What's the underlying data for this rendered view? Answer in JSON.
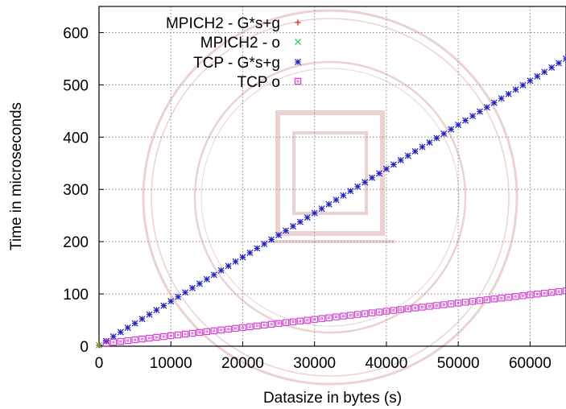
{
  "chart_data": {
    "type": "scatter",
    "title": "",
    "xlabel": "Datasize in bytes (s)",
    "ylabel": "Time in microseconds",
    "xlim": [
      0,
      65000
    ],
    "ylim": [
      0,
      650
    ],
    "x_ticks": [
      0,
      10000,
      20000,
      30000,
      40000,
      50000,
      60000
    ],
    "x_tick_labels": [
      "0",
      "10000",
      "20000",
      "30000",
      "40000",
      "50000",
      "60000"
    ],
    "y_ticks": [
      0,
      100,
      200,
      300,
      400,
      500,
      600
    ],
    "y_tick_labels": [
      "0",
      "100",
      "200",
      "300",
      "400",
      "500",
      "600"
    ],
    "grid": true,
    "legend_position": "top-left",
    "series": [
      {
        "name": "MPICH2 - G*s+g",
        "marker": "plus",
        "color": "#e41a1c",
        "x": [
          0,
          64
        ],
        "y": [
          2,
          2
        ]
      },
      {
        "name": "MPICH2 - o",
        "marker": "cross",
        "color": "#2ecc40",
        "x": [
          0
        ],
        "y": [
          2
        ]
      },
      {
        "name": "TCP - G*s+g",
        "marker": "star",
        "color": "#2020c0",
        "x_start": 1000,
        "x_step": 1000,
        "x_end": 65000,
        "y_at_x_start": 10,
        "y_at_x_end": 550
      },
      {
        "name": "TCP o",
        "marker": "square",
        "color": "#d43fd4",
        "x_start": 1000,
        "x_step": 1000,
        "x_end": 65000,
        "y_at_x_start": 6,
        "y_at_x_end": 106
      }
    ]
  }
}
